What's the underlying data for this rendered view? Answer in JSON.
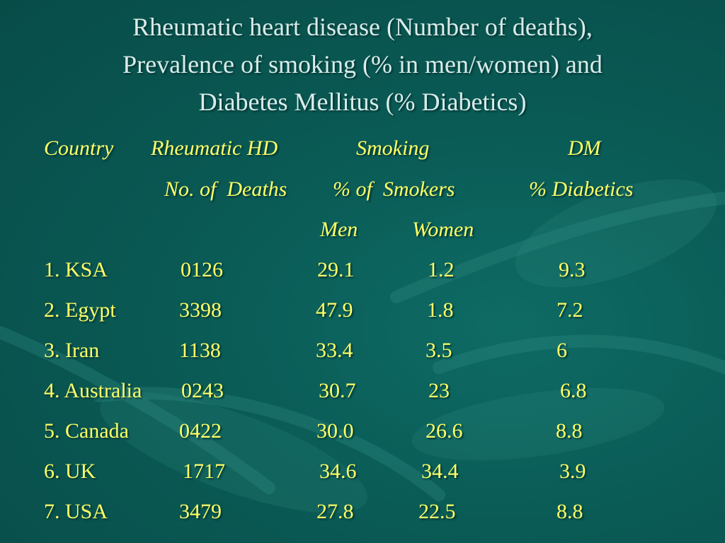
{
  "slide": {
    "title_lines": [
      "Rheumatic heart disease (Number of  deaths),",
      "Prevalence of  smoking (% in men/women) and",
      "Diabetes Mellitus (% Diabetics)"
    ],
    "header_row1": {
      "country": "Country",
      "rheumatic": "Rheumatic HD",
      "smoking": "Smoking",
      "dm": "DM"
    },
    "header_row2": {
      "deaths": "No. of  Deaths",
      "smokers": "% of  Smokers",
      "diabetics": "% Diabetics"
    },
    "header_row3": {
      "men": "Men",
      "women": "Women"
    },
    "rows": [
      {
        "country": "1. KSA",
        "deaths": "0126",
        "men": "29.1",
        "women": "1.2",
        "dm": "9.3"
      },
      {
        "country": "2. Egypt",
        "deaths": "3398",
        "men": "47.9",
        "women": "1.8",
        "dm": "7.2"
      },
      {
        "country": "3. Iran",
        "deaths": "1138",
        "men": "33.4",
        "women": "3.5",
        "dm": "6"
      },
      {
        "country": "4. Australia",
        "deaths": "0243",
        "men": "30.7",
        "women": "23",
        "dm": "6.8"
      },
      {
        "country": "5. Canada",
        "deaths": "0422",
        "men": "30.0",
        "women": "26.6",
        "dm": "8.8"
      },
      {
        "country": "6. UK",
        "deaths": "1717",
        "men": "34.6",
        "women": "34.4",
        "dm": "3.9"
      },
      {
        "country": "7. USA",
        "deaths": "3479",
        "men": "27.8",
        "women": "22.5",
        "dm": "8.8"
      }
    ]
  }
}
